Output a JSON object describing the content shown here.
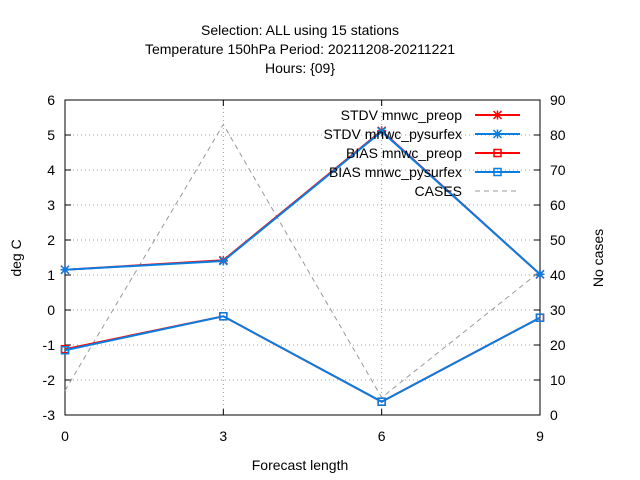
{
  "chart_data": {
    "type": "line",
    "title_lines": [
      "Selection: ALL using    15 stations",
      "Temperature 150hPa   Period: 20211208-20211221",
      "Hours: {09}"
    ],
    "xlabel": "Forecast length",
    "ylabel": "deg C",
    "y2label": "No cases",
    "x": [
      0,
      3,
      6,
      9
    ],
    "xticks": [
      0,
      3,
      6,
      9
    ],
    "xlim": [
      0,
      9
    ],
    "ylim": [
      -3,
      6
    ],
    "yticks": [
      -3,
      -2,
      -1,
      0,
      1,
      2,
      3,
      4,
      5,
      6
    ],
    "y2lim": [
      0,
      90
    ],
    "y2ticks": [
      0,
      10,
      20,
      30,
      40,
      50,
      60,
      70,
      80,
      90
    ],
    "grid": true,
    "legend_position": "top-right",
    "series": [
      {
        "name": "STDV mnwc_preop",
        "axis": "y",
        "color": "#ff0000",
        "marker": "star",
        "dash": "solid",
        "values": [
          1.15,
          1.42,
          5.12,
          1.02
        ]
      },
      {
        "name": "STDV mnwc_pysurfex",
        "axis": "y",
        "color": "#0a7ee0",
        "marker": "star",
        "dash": "solid",
        "values": [
          1.15,
          1.4,
          5.1,
          1.02
        ]
      },
      {
        "name": "BIAS mnwc_preop",
        "axis": "y",
        "color": "#ff0000",
        "marker": "square",
        "dash": "solid",
        "values": [
          -1.12,
          -0.18,
          -2.62,
          -0.22
        ]
      },
      {
        "name": "BIAS mnwc_pysurfex",
        "axis": "y",
        "color": "#0a7ee0",
        "marker": "square",
        "dash": "solid",
        "values": [
          -1.15,
          -0.18,
          -2.62,
          -0.22
        ]
      },
      {
        "name": "CASES",
        "axis": "y2",
        "color": "#999999",
        "marker": "none",
        "dash": "dashed",
        "values": [
          7,
          83,
          5,
          41
        ]
      }
    ]
  }
}
